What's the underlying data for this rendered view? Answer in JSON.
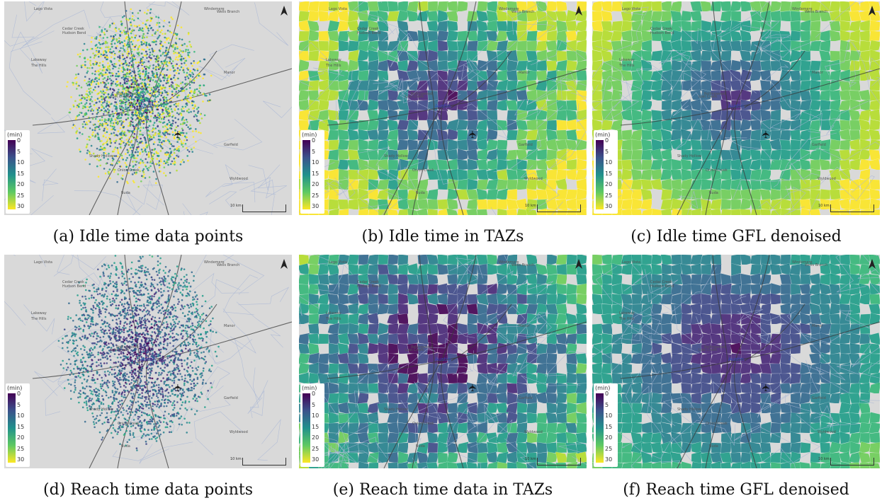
{
  "panels": [
    {
      "id": "a",
      "caption": "(a) Idle time data points",
      "kind": "points",
      "metric": "idle"
    },
    {
      "id": "b",
      "caption": "(b) Idle time in TAZs",
      "kind": "taz",
      "metric": "idle"
    },
    {
      "id": "c",
      "caption": "(c) Idle time GFL denoised",
      "kind": "denoised",
      "metric": "idle"
    },
    {
      "id": "d",
      "caption": "(d) Reach time data points",
      "kind": "points",
      "metric": "reach"
    },
    {
      "id": "e",
      "caption": "(e) Reach time data in TAZs",
      "kind": "taz",
      "metric": "reach"
    },
    {
      "id": "f",
      "caption": "(f) Reach time GFL denoised",
      "kind": "denoised",
      "metric": "reach"
    }
  ],
  "legend": {
    "unit": "(min)",
    "ticks": [
      "0",
      "5",
      "10",
      "15",
      "20",
      "25",
      "30"
    ],
    "colors": [
      "#440154",
      "#3b528b",
      "#21918c",
      "#5ec962",
      "#fde725"
    ]
  },
  "map_labels": {
    "city": "Austin",
    "places": [
      "Lago Vista",
      "Cedar Creek",
      "Hudson Bend",
      "Lakeway",
      "The Hills",
      "Wells Branch",
      "Windemere",
      "Rollingwood",
      "Lost Creek",
      "Shady Hollow",
      "Garfield",
      "Wyldwood",
      "Onion Creek",
      "Buda",
      "Manor"
    ],
    "scale": "10 km",
    "airport_icon": "airplane-icon",
    "north_icon": "north-arrow-icon"
  }
}
